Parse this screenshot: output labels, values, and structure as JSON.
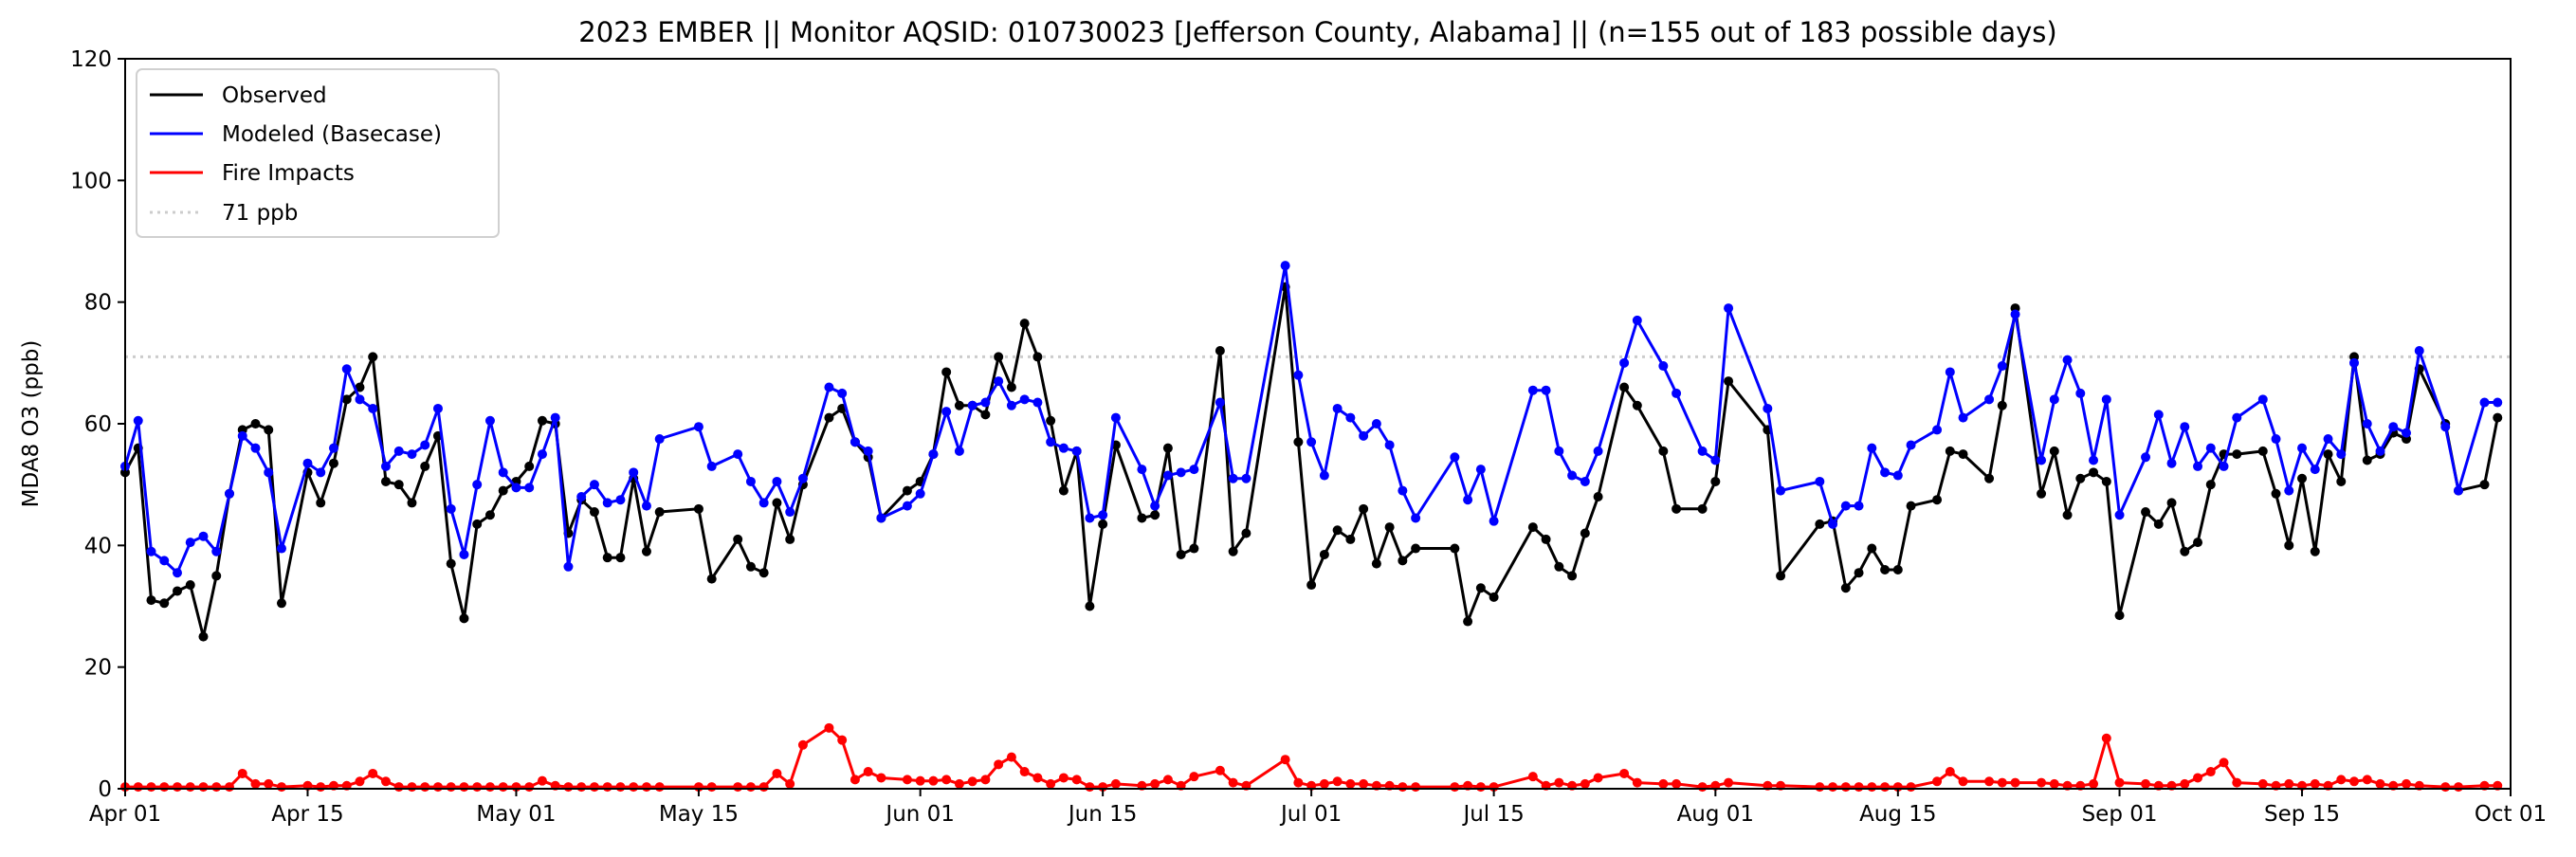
{
  "chart_data": {
    "type": "line",
    "title": "2023 EMBER || Monitor AQSID: 010730023 [Jefferson County, Alabama] || (n=155 out of 183 possible days)",
    "xlabel": "",
    "ylabel": "MDA8 O3 (ppb)",
    "ylim": [
      0,
      120
    ],
    "yticks": [
      0,
      20,
      40,
      60,
      80,
      100,
      120
    ],
    "x_units": "days since Apr 01 2023",
    "xlim": [
      0,
      183
    ],
    "xticks": [
      {
        "day": 0,
        "label": "Apr 01"
      },
      {
        "day": 14,
        "label": "Apr 15"
      },
      {
        "day": 30,
        "label": "May 01"
      },
      {
        "day": 44,
        "label": "May 15"
      },
      {
        "day": 61,
        "label": "Jun 01"
      },
      {
        "day": 75,
        "label": "Jun 15"
      },
      {
        "day": 91,
        "label": "Jul 01"
      },
      {
        "day": 105,
        "label": "Jul 15"
      },
      {
        "day": 122,
        "label": "Aug 01"
      },
      {
        "day": 136,
        "label": "Aug 15"
      },
      {
        "day": 153,
        "label": "Sep 01"
      },
      {
        "day": 167,
        "label": "Sep 15"
      },
      {
        "day": 183,
        "label": "Oct 01"
      }
    ],
    "grid": false,
    "legend_position": "top-left",
    "x": [
      0,
      1,
      2,
      3,
      4,
      5,
      6,
      7,
      8,
      9,
      10,
      11,
      12,
      14,
      15,
      16,
      17,
      18,
      19,
      20,
      21,
      22,
      23,
      24,
      25,
      26,
      27,
      28,
      29,
      30,
      31,
      32,
      33,
      34,
      35,
      36,
      37,
      38,
      39,
      40,
      41,
      44,
      45,
      47,
      48,
      49,
      50,
      51,
      52,
      54,
      55,
      56,
      57,
      58,
      60,
      61,
      62,
      63,
      64,
      65,
      66,
      67,
      68,
      69,
      70,
      71,
      72,
      73,
      74,
      75,
      76,
      78,
      79,
      80,
      81,
      82,
      84,
      85,
      86,
      89,
      90,
      91,
      92,
      93,
      94,
      95,
      96,
      97,
      98,
      99,
      102,
      103,
      104,
      105,
      108,
      109,
      110,
      111,
      112,
      113,
      115,
      116,
      118,
      119,
      121,
      122,
      123,
      126,
      127,
      130,
      131,
      132,
      133,
      134,
      135,
      136,
      137,
      139,
      140,
      141,
      143,
      144,
      145,
      147,
      148,
      149,
      150,
      151,
      152,
      153,
      155,
      156,
      157,
      158,
      159,
      160,
      161,
      162,
      164,
      165,
      166,
      167,
      168,
      169,
      170,
      171,
      172,
      173,
      174,
      175,
      176,
      178,
      179,
      181,
      182
    ],
    "series": [
      {
        "name": "Observed",
        "color": "#000000",
        "values": [
          52,
          56,
          31,
          30.5,
          32.5,
          33.5,
          25,
          35,
          48.5,
          59,
          60,
          59,
          30.5,
          52,
          47,
          53.5,
          64,
          66,
          71,
          50.5,
          50,
          47,
          53,
          58,
          37,
          28,
          43.5,
          45,
          49,
          50.5,
          53,
          60.5,
          60,
          42,
          47.5,
          45.5,
          38,
          38,
          51,
          39,
          45.5,
          46,
          34.5,
          41,
          36.5,
          35.5,
          47,
          41,
          50,
          61,
          62.5,
          57,
          54.5,
          44.5,
          49,
          50.5,
          55,
          68.5,
          63,
          63,
          61.5,
          71,
          66,
          76.5,
          71,
          60.5,
          49,
          55.5,
          30,
          43.5,
          56.5,
          44.5,
          45,
          56,
          38.5,
          39.5,
          72,
          39,
          42,
          82.5,
          57,
          33.5,
          38.5,
          42.5,
          41,
          46,
          37,
          43,
          37.5,
          39.5,
          39.5,
          27.5,
          33,
          31.5,
          43,
          41,
          36.5,
          35,
          42,
          48,
          66,
          63,
          55.5,
          46,
          46,
          50.5,
          67,
          59,
          35,
          43.5,
          44,
          33,
          35.5,
          39.5,
          36,
          36,
          46.5,
          47.5,
          55.5,
          55,
          51,
          63,
          79,
          48.5,
          55.5,
          45,
          51,
          52,
          50.5,
          28.5,
          45.5,
          43.5,
          47,
          39,
          40.5,
          50,
          55,
          55,
          55.5,
          48.5,
          40,
          51,
          39,
          55,
          50.5,
          71,
          54,
          55,
          58.5,
          57.5,
          69,
          60,
          49,
          50,
          61
        ]
      },
      {
        "name": "Modeled (Basecase)",
        "color": "#0000ff",
        "values": [
          53,
          60.5,
          39,
          37.5,
          35.5,
          40.5,
          41.5,
          39,
          48.5,
          58,
          56,
          52,
          39.5,
          53.5,
          52,
          56,
          69,
          64,
          62.5,
          53,
          55.5,
          55,
          56.5,
          62.5,
          46,
          38.5,
          50,
          60.5,
          52,
          49.5,
          49.5,
          55,
          61,
          36.5,
          48,
          50,
          47,
          47.5,
          52,
          46.5,
          57.5,
          59.5,
          53,
          55,
          50.5,
          47,
          50.5,
          45.5,
          51,
          66,
          65,
          57,
          55.5,
          44.5,
          46.5,
          48.5,
          55,
          62,
          55.5,
          63,
          63.5,
          67,
          63,
          64,
          63.5,
          57,
          56,
          55.5,
          44.5,
          45,
          61,
          52.5,
          46.5,
          51.5,
          52,
          52.5,
          63.5,
          51,
          51,
          86,
          68,
          57,
          51.5,
          62.5,
          61,
          58,
          60,
          56.5,
          49,
          44.5,
          54.5,
          47.5,
          52.5,
          44,
          65.5,
          65.5,
          55.5,
          51.5,
          50.5,
          55.5,
          70,
          77,
          69.5,
          65,
          55.5,
          54,
          79,
          62.5,
          49,
          50.5,
          43.5,
          46.5,
          46.5,
          56,
          52,
          51.5,
          56.5,
          59,
          68.5,
          61,
          64,
          69.5,
          78,
          54,
          64,
          70.5,
          65,
          54,
          64,
          45,
          54.5,
          61.5,
          53.5,
          59.5,
          53,
          56,
          53,
          61,
          64,
          57.5,
          49,
          56,
          52.5,
          57.5,
          55,
          70,
          60,
          55.5,
          59.5,
          58.5,
          72,
          59.5,
          49,
          63.5,
          63.5
        ]
      },
      {
        "name": "Fire Impacts",
        "color": "#ff0000",
        "values": [
          0.3,
          0.3,
          0.3,
          0.3,
          0.3,
          0.3,
          0.3,
          0.3,
          0.3,
          2.5,
          0.8,
          0.8,
          0.3,
          0.5,
          0.3,
          0.5,
          0.5,
          1.2,
          2.5,
          1.2,
          0.3,
          0.3,
          0.3,
          0.3,
          0.3,
          0.3,
          0.3,
          0.3,
          0.3,
          0.3,
          0.3,
          1.3,
          0.5,
          0.3,
          0.3,
          0.3,
          0.3,
          0.3,
          0.3,
          0.3,
          0.3,
          0.3,
          0.3,
          0.3,
          0.3,
          0.3,
          2.5,
          0.8,
          7.2,
          10,
          8,
          1.5,
          2.8,
          1.8,
          1.5,
          1.3,
          1.3,
          1.5,
          0.8,
          1.2,
          1.5,
          4,
          5.2,
          2.8,
          1.8,
          0.8,
          1.8,
          1.5,
          0.3,
          0.3,
          0.8,
          0.5,
          0.8,
          1.5,
          0.5,
          2,
          3,
          1,
          0.5,
          4.8,
          1,
          0.5,
          0.8,
          1.2,
          0.8,
          0.8,
          0.5,
          0.5,
          0.3,
          0.3,
          0.3,
          0.5,
          0.3,
          0.3,
          2,
          0.5,
          1,
          0.5,
          0.8,
          1.8,
          2.5,
          1,
          0.8,
          0.8,
          0.3,
          0.5,
          1,
          0.5,
          0.5,
          0.3,
          0.3,
          0.3,
          0.3,
          0.3,
          0.3,
          0.3,
          0.3,
          1.2,
          2.8,
          1.2,
          1.2,
          1,
          1,
          1,
          0.8,
          0.5,
          0.5,
          0.8,
          8.3,
          1,
          0.8,
          0.5,
          0.5,
          0.8,
          1.8,
          2.8,
          4.3,
          1,
          0.8,
          0.5,
          0.8,
          0.5,
          0.8,
          0.5,
          1.5,
          1.2,
          1.5,
          0.8,
          0.5,
          0.8,
          0.5,
          0.3,
          0.3,
          0.5,
          0.5
        ]
      }
    ],
    "reference_line": {
      "name": "71 ppb",
      "value": 71,
      "color": "#cccccc",
      "style": "dotted"
    },
    "legend": [
      "Observed",
      "Modeled (Basecase)",
      "Fire Impacts",
      "71 ppb"
    ]
  }
}
